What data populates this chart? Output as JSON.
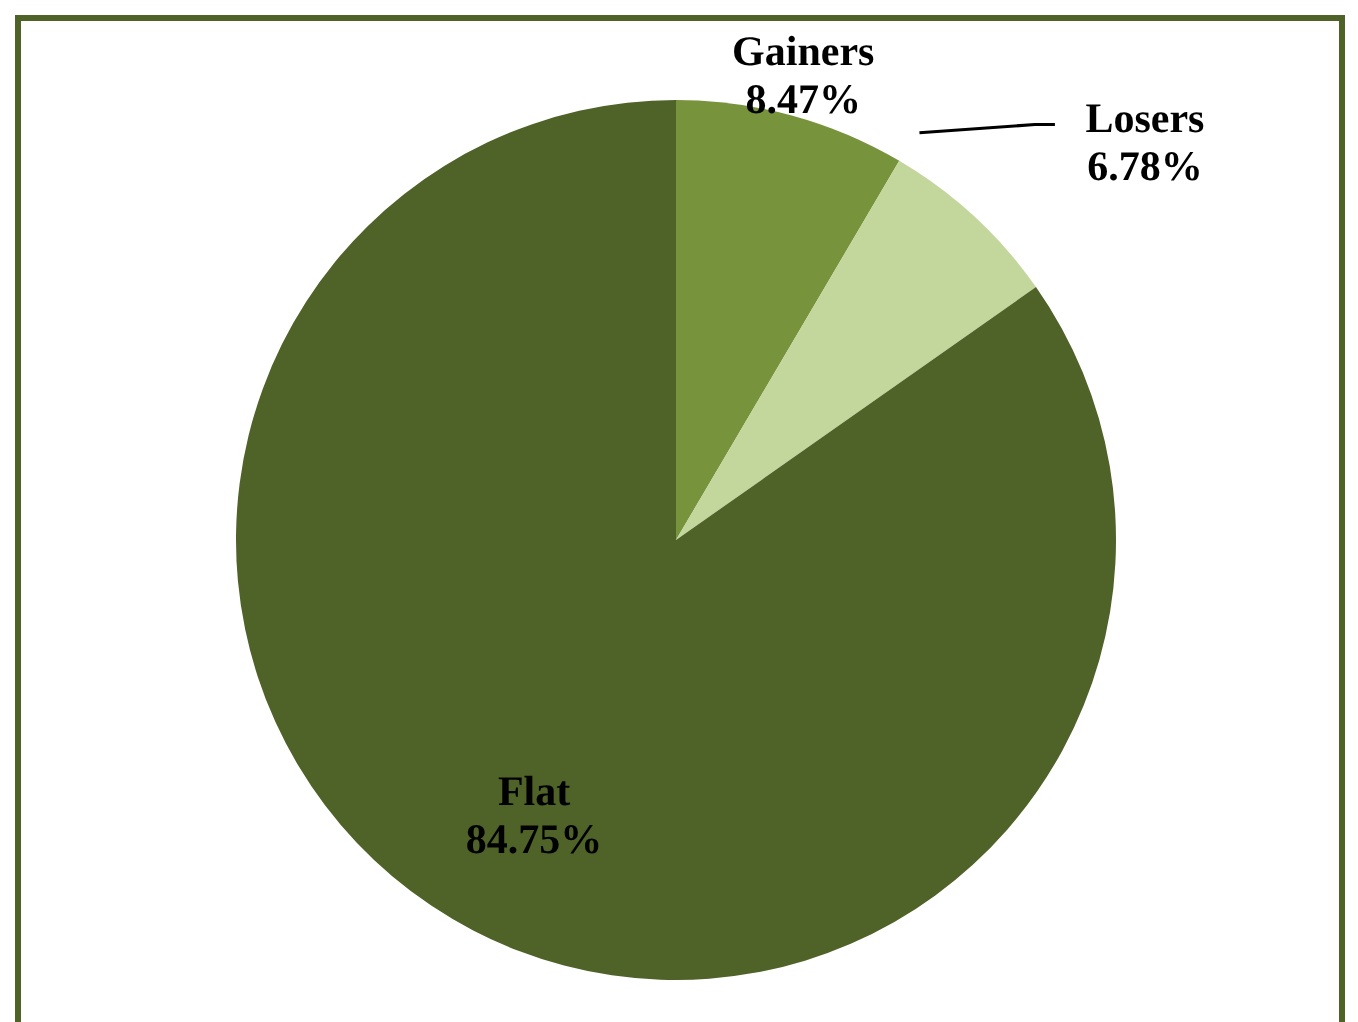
{
  "chart_data": {
    "type": "pie",
    "categories": [
      "Gainers",
      "Losers",
      "Flat"
    ],
    "values": [
      8.47,
      6.78,
      84.75
    ],
    "colors": [
      "#77933c",
      "#c3d69b",
      "#4f6228"
    ],
    "value_labels": [
      "8.47%",
      "6.78%",
      "84.75%"
    ]
  }
}
